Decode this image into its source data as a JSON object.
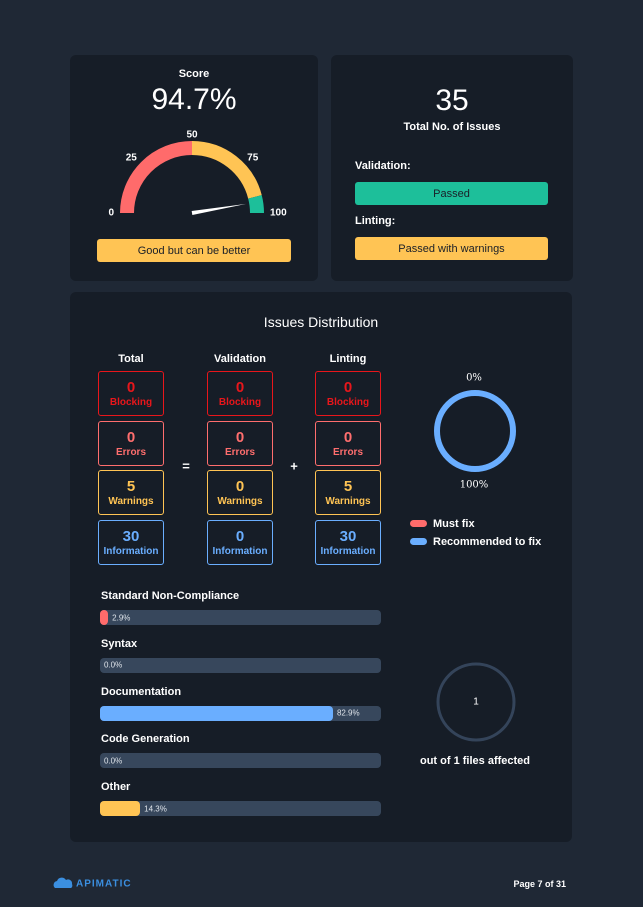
{
  "score": {
    "label": "Score",
    "value": 94.7,
    "value_label": "94.7%"
  },
  "gauge": {
    "range": [
      0,
      100
    ],
    "ticks": [
      0,
      25,
      50,
      75,
      100
    ],
    "bands": [
      {
        "from": 0,
        "to": 50,
        "color": "#ff6b6b"
      },
      {
        "from": 50,
        "to": 92,
        "color": "#ffc454"
      },
      {
        "from": 92,
        "to": 100,
        "color": "#1dbf9a"
      }
    ],
    "status": "Good but can be better",
    "status_color": "#ffc454"
  },
  "summary": {
    "total": 35,
    "total_label": "Total No. of Issues",
    "checks": [
      {
        "name": "Validation:",
        "status": "Passed",
        "color": "#1dbf9a"
      },
      {
        "name": "Linting:",
        "status": "Passed with warnings",
        "color": "#ffc454"
      }
    ]
  },
  "distribution": {
    "title": "Issues Distribution",
    "columns": [
      "Total",
      "Validation",
      "Linting"
    ],
    "operators": [
      "=",
      "+"
    ],
    "rows": [
      {
        "name": "Blocking",
        "color": "#e8161b",
        "values": [
          0,
          0,
          0
        ]
      },
      {
        "name": "Errors",
        "color": "#ff6e6e",
        "values": [
          0,
          0,
          0
        ]
      },
      {
        "name": "Warnings",
        "color": "#ffc454",
        "values": [
          5,
          0,
          5
        ]
      },
      {
        "name": "Information",
        "color": "#6aaeff",
        "values": [
          30,
          0,
          30
        ]
      }
    ]
  },
  "donut": {
    "values": [
      0,
      100
    ],
    "labels": [
      "0%",
      "100%"
    ],
    "series": [
      {
        "name": "Must fix",
        "color": "#ff6b6b"
      },
      {
        "name": "Recommended to fix",
        "color": "#6aaeff"
      }
    ]
  },
  "categories": {
    "xlim": [
      0,
      100
    ],
    "items": [
      {
        "name": "Standard Non-Compliance",
        "value": 2.9,
        "label": "2.9%",
        "color": "#ff6b6b"
      },
      {
        "name": "Syntax",
        "value": 0.0,
        "label": "0.0%",
        "color": "#6aaeff"
      },
      {
        "name": "Documentation",
        "value": 82.9,
        "label": "82.9%",
        "color": "#6aaeff"
      },
      {
        "name": "Code Generation",
        "value": 0.0,
        "label": "0.0%",
        "color": "#6aaeff"
      },
      {
        "name": "Other",
        "value": 14.3,
        "label": "14.3%",
        "color": "#ffc454"
      }
    ]
  },
  "files": {
    "affected": 1,
    "text": "out of 1 files affected"
  },
  "footer": {
    "brand": "APIMATIC",
    "page": "Page 7 of 31"
  }
}
